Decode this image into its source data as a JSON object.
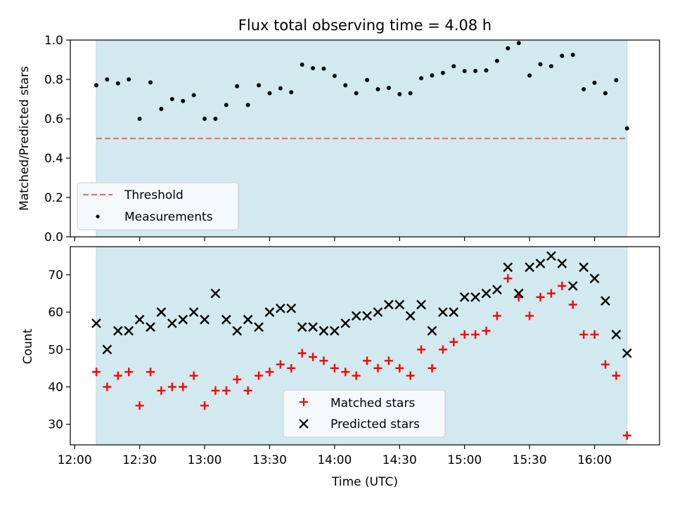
{
  "chart_data": [
    {
      "type": "scatter",
      "title": "Flux total observing time = 4.08 h",
      "xlabel": "",
      "ylabel": "Matched/Predicted stars",
      "xlim": [
        "11:58",
        "16:30"
      ],
      "ylim": [
        0,
        1.0
      ],
      "yticks": [
        0.0,
        0.2,
        0.4,
        0.6,
        0.8,
        1.0
      ],
      "ytick_labels": [
        "0.0",
        "0.2",
        "0.4",
        "0.6",
        "0.8",
        "1.0"
      ],
      "observing_window": [
        "12:10",
        "16:15"
      ],
      "legend": {
        "placement": "lower-left",
        "entries": [
          "Threshold",
          "Measurements"
        ]
      },
      "series": [
        {
          "name": "Threshold",
          "kind": "dashed-line",
          "color": "#f07070",
          "x": [
            "12:10",
            "16:15"
          ],
          "y": [
            0.5,
            0.5
          ]
        },
        {
          "name": "Measurements",
          "kind": "dot",
          "color": "#000000",
          "x": [
            "12:10",
            "12:15",
            "12:20",
            "12:25",
            "12:30",
            "12:35",
            "12:40",
            "12:45",
            "12:50",
            "12:55",
            "13:00",
            "13:05",
            "13:10",
            "13:15",
            "13:20",
            "13:25",
            "13:30",
            "13:35",
            "13:40",
            "13:45",
            "13:50",
            "13:55",
            "14:00",
            "14:05",
            "14:10",
            "14:15",
            "14:20",
            "14:25",
            "14:30",
            "14:35",
            "14:40",
            "14:45",
            "14:50",
            "14:55",
            "15:00",
            "15:05",
            "15:10",
            "15:15",
            "15:20",
            "15:25",
            "15:30",
            "15:35",
            "15:40",
            "15:45",
            "15:50",
            "15:55",
            "16:00",
            "16:05",
            "16:10",
            "16:15"
          ],
          "y": [
            0.77,
            0.8,
            0.78,
            0.8,
            0.6,
            0.785,
            0.65,
            0.7,
            0.69,
            0.72,
            0.6,
            0.6,
            0.67,
            0.765,
            0.67,
            0.77,
            0.73,
            0.755,
            0.735,
            0.875,
            0.857,
            0.855,
            0.818,
            0.77,
            0.73,
            0.797,
            0.75,
            0.757,
            0.725,
            0.73,
            0.806,
            0.82,
            0.833,
            0.867,
            0.843,
            0.843,
            0.846,
            0.894,
            0.958,
            0.985,
            0.82,
            0.877,
            0.867,
            0.92,
            0.925,
            0.75,
            0.783,
            0.73,
            0.796,
            0.551
          ]
        }
      ]
    },
    {
      "type": "scatter",
      "title": "",
      "xlabel": "Time (UTC)",
      "ylabel": "Count",
      "xlim": [
        "11:58",
        "16:30"
      ],
      "ylim": [
        24.5,
        77.5
      ],
      "yticks": [
        30,
        40,
        50,
        60,
        70
      ],
      "ytick_labels": [
        "30",
        "40",
        "50",
        "60",
        "70"
      ],
      "xticks": [
        "12:00",
        "12:30",
        "13:00",
        "13:30",
        "14:00",
        "14:30",
        "15:00",
        "15:30",
        "16:00"
      ],
      "xtick_labels": [
        "12:00",
        "12:30",
        "13:00",
        "13:30",
        "14:00",
        "14:30",
        "15:00",
        "15:30",
        "16:00"
      ],
      "observing_window": [
        "12:10",
        "16:15"
      ],
      "legend": {
        "placement": "lower-center",
        "entries": [
          "Matched stars",
          "Predicted stars"
        ]
      },
      "series": [
        {
          "name": "Matched stars",
          "marker": "+",
          "color": "#ff0000",
          "x": [
            "12:10",
            "12:15",
            "12:20",
            "12:25",
            "12:30",
            "12:35",
            "12:40",
            "12:45",
            "12:50",
            "12:55",
            "13:00",
            "13:05",
            "13:10",
            "13:15",
            "13:20",
            "13:25",
            "13:30",
            "13:35",
            "13:40",
            "13:45",
            "13:50",
            "13:55",
            "14:00",
            "14:05",
            "14:10",
            "14:15",
            "14:20",
            "14:25",
            "14:30",
            "14:35",
            "14:40",
            "14:45",
            "14:50",
            "14:55",
            "15:00",
            "15:05",
            "15:10",
            "15:15",
            "15:20",
            "15:25",
            "15:30",
            "15:35",
            "15:40",
            "15:45",
            "15:50",
            "15:55",
            "16:00",
            "16:05",
            "16:10",
            "16:15"
          ],
          "y": [
            44,
            40,
            43,
            44,
            35,
            44,
            39,
            40,
            40,
            43,
            35,
            39,
            39,
            42,
            39,
            43,
            44,
            46,
            45,
            49,
            48,
            47,
            45,
            44,
            43,
            47,
            45,
            47,
            45,
            43,
            50,
            45,
            50,
            52,
            54,
            54,
            55,
            59,
            69,
            64,
            59,
            64,
            65,
            67,
            62,
            54,
            54,
            46,
            43,
            27
          ]
        },
        {
          "name": "Predicted stars",
          "marker": "x",
          "color": "#000000",
          "x": [
            "12:10",
            "12:15",
            "12:20",
            "12:25",
            "12:30",
            "12:35",
            "12:40",
            "12:45",
            "12:50",
            "12:55",
            "13:00",
            "13:05",
            "13:10",
            "13:15",
            "13:20",
            "13:25",
            "13:30",
            "13:35",
            "13:40",
            "13:45",
            "13:50",
            "13:55",
            "14:00",
            "14:05",
            "14:10",
            "14:15",
            "14:20",
            "14:25",
            "14:30",
            "14:35",
            "14:40",
            "14:45",
            "14:50",
            "14:55",
            "15:00",
            "15:05",
            "15:10",
            "15:15",
            "15:20",
            "15:25",
            "15:30",
            "15:35",
            "15:40",
            "15:45",
            "15:50",
            "15:55",
            "16:00",
            "16:05",
            "16:10",
            "16:15"
          ],
          "y": [
            57,
            50,
            55,
            55,
            58,
            56,
            60,
            57,
            58,
            60,
            58,
            65,
            58,
            55,
            58,
            56,
            60,
            61,
            61,
            56,
            56,
            55,
            55,
            57,
            59,
            59,
            60,
            62,
            62,
            59,
            62,
            55,
            60,
            60,
            64,
            64,
            65,
            66,
            72,
            65,
            72,
            73,
            75,
            73,
            67,
            72,
            69,
            63,
            54,
            49
          ]
        }
      ]
    }
  ],
  "colors": {
    "observing_band": "#d2e9ef",
    "band_edge": "#b4dce5",
    "legend_bg": "#f5f9fb"
  }
}
